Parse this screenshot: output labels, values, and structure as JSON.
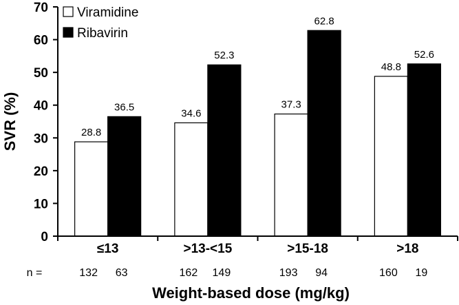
{
  "chart_data": {
    "type": "bar",
    "categories": [
      "≤13",
      ">13-<15",
      ">15-18",
      ">18"
    ],
    "series": [
      {
        "name": "Viramidine",
        "values": [
          28.8,
          34.6,
          37.3,
          48.8
        ],
        "n": [
          132,
          162,
          193,
          160
        ],
        "color": "#ffffff"
      },
      {
        "name": "Ribavirin",
        "values": [
          36.5,
          52.3,
          62.8,
          52.6
        ],
        "n": [
          63,
          149,
          94,
          19
        ],
        "color": "#000000"
      }
    ],
    "data_labels": [
      [
        "28.8",
        "34.6",
        "37.3",
        "48.8"
      ],
      [
        "36.5",
        "52.3",
        "62.8",
        "52.6"
      ]
    ],
    "n_label": "n =",
    "n_values": [
      [
        "132",
        "162",
        "193",
        "160"
      ],
      [
        "63",
        "149",
        "94",
        "19"
      ]
    ],
    "xlabel": "Weight-based dose (mg/kg)",
    "ylabel": "SVR (%)",
    "ylim": [
      0,
      70
    ],
    "yticks": [
      0,
      10,
      20,
      30,
      40,
      50,
      60,
      70
    ],
    "legend": {
      "position": "top-left",
      "entries": [
        "Viramidine",
        "Ribavirin"
      ]
    },
    "grid": false
  }
}
